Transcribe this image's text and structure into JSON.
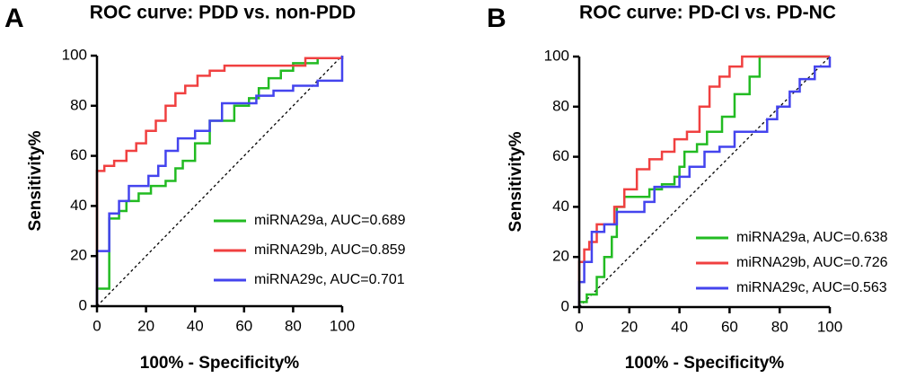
{
  "chart_data": [
    {
      "type": "line",
      "panel": "A",
      "title": "ROC curve: PDD vs. non-PDD",
      "x_label": "100% - Specificity%",
      "y_label": "Sensitivity%",
      "xlim": [
        0,
        100
      ],
      "ylim": [
        0,
        100
      ],
      "xticks": [
        0,
        20,
        40,
        60,
        80,
        100
      ],
      "yticks": [
        0,
        20,
        40,
        60,
        80,
        100
      ],
      "grid": false,
      "legend": "lower right",
      "series": [
        {
          "name": "miRNA29a, AUC=0.689",
          "color": "#22bb22",
          "x": [
            0,
            0,
            5,
            5,
            9,
            9,
            12,
            12,
            17,
            17,
            22,
            22,
            28,
            28,
            32,
            32,
            35,
            35,
            40,
            40,
            46,
            46,
            56,
            56,
            62,
            62,
            66,
            66,
            70,
            70,
            75,
            75,
            80,
            80,
            90,
            90,
            100,
            100
          ],
          "values": [
            0,
            7,
            7,
            35,
            35,
            38,
            38,
            42,
            42,
            45,
            45,
            48,
            48,
            50,
            50,
            55,
            55,
            58,
            58,
            65,
            65,
            74,
            74,
            80,
            80,
            83,
            83,
            87,
            87,
            91,
            91,
            94,
            94,
            97,
            97,
            99,
            99,
            100
          ]
        },
        {
          "name": "miRNA29b, AUC=0.859",
          "color": "#f04040",
          "x": [
            0,
            0,
            3,
            3,
            7,
            7,
            12,
            12,
            16,
            16,
            20,
            20,
            24,
            24,
            28,
            28,
            32,
            32,
            36,
            36,
            41,
            41,
            46,
            46,
            52,
            52,
            85,
            85,
            100,
            100
          ],
          "values": [
            0,
            54,
            54,
            56,
            56,
            58,
            58,
            62,
            62,
            65,
            65,
            70,
            70,
            74,
            74,
            80,
            80,
            85,
            85,
            88,
            88,
            92,
            92,
            94,
            94,
            96,
            96,
            99,
            99,
            100
          ]
        },
        {
          "name": "miRNA29c, AUC=0.701",
          "color": "#4444ee",
          "x": [
            0,
            0,
            5,
            5,
            9,
            9,
            13,
            13,
            21,
            21,
            25,
            25,
            28,
            28,
            33,
            33,
            40,
            40,
            46,
            46,
            51,
            51,
            65,
            65,
            72,
            72,
            80,
            80,
            90,
            90,
            100,
            100
          ],
          "values": [
            0,
            22,
            22,
            37,
            37,
            42,
            42,
            48,
            48,
            52,
            52,
            56,
            56,
            62,
            62,
            67,
            67,
            70,
            70,
            74,
            74,
            81,
            81,
            84,
            84,
            86,
            86,
            88,
            88,
            90,
            90,
            100
          ]
        }
      ]
    },
    {
      "type": "line",
      "panel": "B",
      "title": "ROC curve: PD-CI vs. PD-NC",
      "x_label": "100% - Specificity%",
      "y_label": "Sensitivity%",
      "xlim": [
        0,
        100
      ],
      "ylim": [
        0,
        100
      ],
      "xticks": [
        0,
        20,
        40,
        60,
        80,
        100
      ],
      "yticks": [
        0,
        20,
        40,
        60,
        80,
        100
      ],
      "grid": false,
      "legend": "lower right",
      "series": [
        {
          "name": "miRNA29a, AUC=0.638",
          "color": "#22bb22",
          "x": [
            0,
            0,
            3,
            3,
            7,
            7,
            10,
            10,
            13,
            13,
            15,
            15,
            18,
            18,
            28,
            28,
            33,
            33,
            38,
            38,
            40,
            40,
            42,
            42,
            47,
            47,
            51,
            51,
            57,
            57,
            62,
            62,
            68,
            68,
            72,
            72,
            100
          ],
          "values": [
            0,
            2,
            2,
            5,
            5,
            12,
            12,
            20,
            20,
            28,
            28,
            40,
            40,
            44,
            44,
            47,
            47,
            49,
            49,
            52,
            52,
            56,
            56,
            62,
            62,
            65,
            65,
            70,
            70,
            76,
            76,
            85,
            85,
            92,
            92,
            100,
            100
          ]
        },
        {
          "name": "miRNA29b, AUC=0.726",
          "color": "#f04040",
          "x": [
            0,
            0,
            2,
            2,
            4,
            4,
            7,
            7,
            14,
            14,
            18,
            18,
            23,
            23,
            28,
            28,
            33,
            33,
            38,
            38,
            43,
            43,
            48,
            48,
            52,
            52,
            56,
            56,
            60,
            60,
            65,
            65,
            100
          ],
          "values": [
            0,
            18,
            18,
            23,
            23,
            26,
            26,
            33,
            33,
            40,
            40,
            47,
            47,
            55,
            55,
            59,
            59,
            62,
            62,
            67,
            67,
            70,
            70,
            80,
            80,
            88,
            88,
            92,
            92,
            96,
            96,
            100,
            100
          ]
        },
        {
          "name": "miRNA29c, AUC=0.563",
          "color": "#4444ee",
          "x": [
            0,
            0,
            2,
            2,
            5,
            5,
            10,
            10,
            15,
            15,
            26,
            26,
            30,
            30,
            40,
            40,
            44,
            44,
            50,
            50,
            56,
            56,
            62,
            62,
            75,
            75,
            79,
            79,
            84,
            84,
            88,
            88,
            94,
            94,
            100,
            100
          ],
          "values": [
            0,
            10,
            10,
            18,
            18,
            30,
            30,
            33,
            33,
            38,
            38,
            42,
            42,
            48,
            48,
            52,
            52,
            56,
            56,
            62,
            62,
            64,
            64,
            70,
            70,
            75,
            75,
            80,
            80,
            86,
            86,
            91,
            91,
            96,
            96,
            100
          ]
        }
      ]
    }
  ]
}
